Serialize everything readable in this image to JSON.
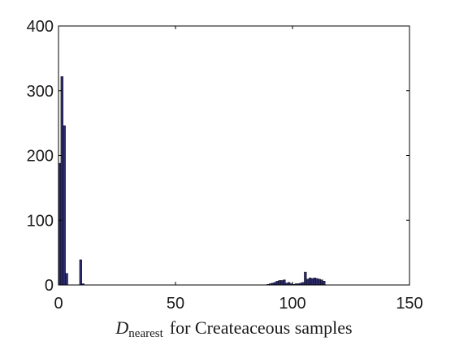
{
  "chart_data": {
    "type": "bar",
    "title": "",
    "xlabel": {
      "symbol": "D",
      "subscript": "nearest",
      "text": "for Createaceous samples"
    },
    "ylabel": "",
    "xlim": [
      0,
      150
    ],
    "ylim": [
      0,
      400
    ],
    "xticks": [
      "0",
      "50",
      "100",
      "150"
    ],
    "yticks": [
      "0",
      "100",
      "200",
      "300",
      "400"
    ],
    "grid": false,
    "bar_color": "#2b2a6b",
    "bar_width": 1,
    "bins": [
      {
        "x": 0.5,
        "value": 188
      },
      {
        "x": 1.5,
        "value": 322
      },
      {
        "x": 2.5,
        "value": 246
      },
      {
        "x": 3.5,
        "value": 18
      },
      {
        "x": 9.5,
        "value": 39
      },
      {
        "x": 10.5,
        "value": 2
      },
      {
        "x": 89.5,
        "value": 1
      },
      {
        "x": 90.5,
        "value": 2
      },
      {
        "x": 91.5,
        "value": 3
      },
      {
        "x": 92.5,
        "value": 4
      },
      {
        "x": 93.5,
        "value": 6
      },
      {
        "x": 94.5,
        "value": 7
      },
      {
        "x": 95.5,
        "value": 7
      },
      {
        "x": 96.5,
        "value": 8
      },
      {
        "x": 97.5,
        "value": 3
      },
      {
        "x": 98.5,
        "value": 4
      },
      {
        "x": 99.5,
        "value": 2
      },
      {
        "x": 100.5,
        "value": 1
      },
      {
        "x": 101.5,
        "value": 2
      },
      {
        "x": 102.5,
        "value": 2
      },
      {
        "x": 103.5,
        "value": 3
      },
      {
        "x": 104.5,
        "value": 4
      },
      {
        "x": 105.5,
        "value": 20
      },
      {
        "x": 106.5,
        "value": 9
      },
      {
        "x": 107.5,
        "value": 11
      },
      {
        "x": 108.5,
        "value": 10
      },
      {
        "x": 109.5,
        "value": 11
      },
      {
        "x": 110.5,
        "value": 10
      },
      {
        "x": 111.5,
        "value": 9
      },
      {
        "x": 112.5,
        "value": 8
      },
      {
        "x": 113.5,
        "value": 6
      }
    ]
  }
}
